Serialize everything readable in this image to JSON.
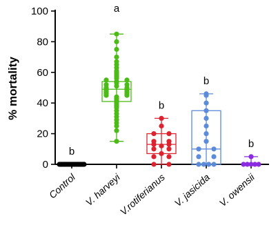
{
  "chart_data": {
    "type": "box-scatter",
    "ylabel": "% mortality",
    "ylim": [
      0,
      100
    ],
    "yticks": [
      0,
      20,
      40,
      60,
      80,
      100
    ],
    "categories": [
      "Control",
      "V. harveyi",
      "V.rotiferianus",
      "V. jasicida",
      "V. owensii"
    ],
    "significance": [
      "b",
      "a",
      "b",
      "b",
      "b"
    ],
    "colors": [
      "#000000",
      "#4cbb17",
      "#dc2430",
      "#5b8bd9",
      "#8a2be2"
    ],
    "groups": [
      {
        "name": "Control",
        "box": {
          "min": 0,
          "q1": 0,
          "median": 0,
          "q3": 0,
          "max": 0
        },
        "points": [
          0,
          0,
          0,
          0,
          0,
          0,
          0,
          0,
          0,
          0,
          0,
          0,
          0,
          0,
          0,
          0,
          0,
          0,
          0,
          0
        ]
      },
      {
        "name": "V. harveyi",
        "box": {
          "min": 15,
          "q1": 41,
          "median": 49,
          "q3": 54,
          "max": 85
        },
        "points": [
          85,
          80,
          75,
          70,
          67,
          65,
          63,
          61,
          60,
          59,
          58,
          57,
          56,
          55,
          55,
          54,
          53,
          52,
          52,
          51,
          50,
          50,
          49,
          49,
          48,
          48,
          47,
          47,
          46,
          46,
          45,
          45,
          44,
          43,
          42,
          41,
          40,
          39,
          38,
          37,
          35,
          33,
          31,
          29,
          27,
          25,
          22,
          15
        ]
      },
      {
        "name": "V.rotiferianus",
        "box": {
          "min": 0,
          "q1": 7,
          "median": 13,
          "q3": 20,
          "max": 30
        },
        "points": [
          30,
          25,
          20,
          20,
          15,
          15,
          13,
          13,
          12,
          10,
          10,
          7,
          5,
          5,
          0,
          0
        ]
      },
      {
        "name": "V. jasicida",
        "box": {
          "min": 0,
          "q1": 0,
          "median": 10,
          "q3": 35,
          "max": 46
        },
        "points": [
          46,
          45,
          40,
          35,
          30,
          25,
          20,
          15,
          10,
          10,
          5,
          5,
          0,
          0,
          0,
          0
        ]
      },
      {
        "name": "V. owensii",
        "box": {
          "min": 0,
          "q1": 0,
          "median": 0,
          "q3": 0,
          "max": 5
        },
        "points": [
          5,
          0,
          0,
          0,
          0,
          0
        ]
      }
    ]
  }
}
